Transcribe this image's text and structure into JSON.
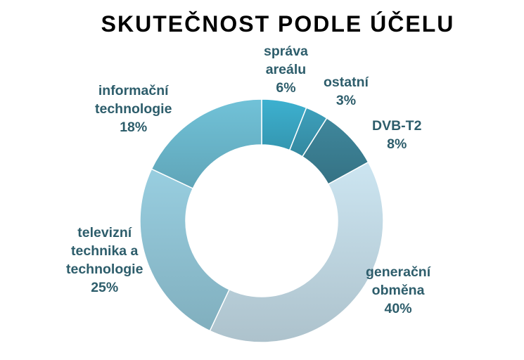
{
  "chart_data": {
    "type": "pie",
    "variant": "donut",
    "title": "SKUTEČNOST PODLE ÚČELU",
    "categories": [
      "správa areálu",
      "ostatní",
      "DVB-T2",
      "generační obměna",
      "televizní technika a technologie",
      "informační technologie"
    ],
    "label_lines": [
      [
        "správa",
        "areálu"
      ],
      [
        "ostatní"
      ],
      [
        "DVB-T2"
      ],
      [
        "generační",
        "obměna"
      ],
      [
        "televizní",
        "technika a",
        "technologie"
      ],
      [
        "informační",
        "technologie"
      ]
    ],
    "values": [
      6,
      3,
      8,
      40,
      25,
      18
    ],
    "value_labels": [
      "6%",
      "3%",
      "8%",
      "40%",
      "25%",
      "18%"
    ],
    "colors": [
      "#3aa7c4",
      "#3a97b1",
      "#3b7f93",
      "#c0d8e3",
      "#8fc2d3",
      "#6bb7cc"
    ],
    "label_color": "#2d5d6b",
    "legend": "none"
  }
}
